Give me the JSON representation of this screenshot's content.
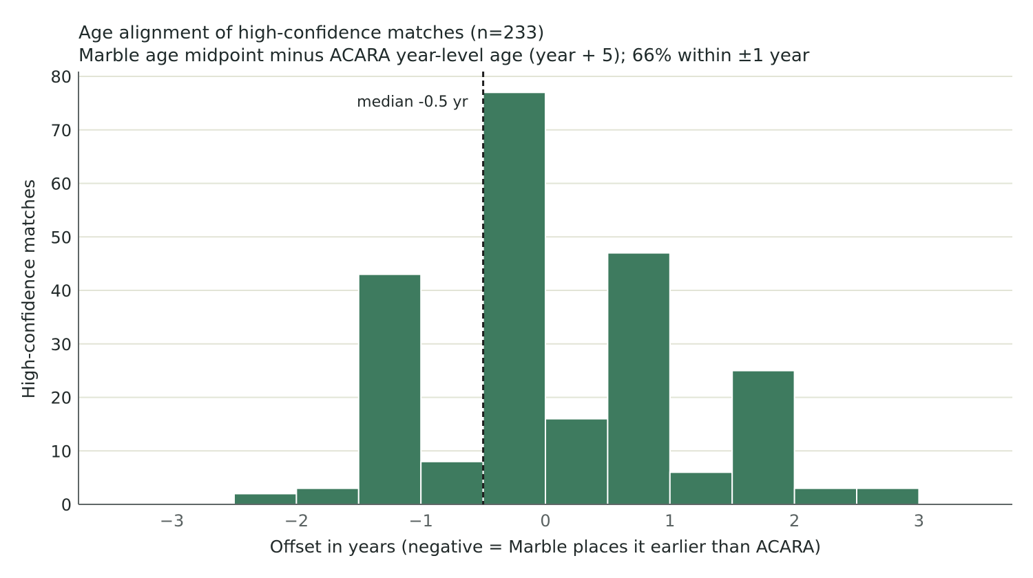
{
  "chart_data": {
    "type": "bar",
    "title": "Age alignment of high-confidence matches (n=233)",
    "subtitle": "Marble age midpoint minus ACARA year-level age (year + 5); 66% within ±1 year",
    "xlabel": "Offset in years  (negative = Marble places it earlier than ACARA)",
    "ylabel": "High-confidence matches",
    "xlim": [
      -3.75,
      3.75
    ],
    "ylim": [
      0,
      80
    ],
    "x_ticks": [
      {
        "value": -3,
        "label": "−3"
      },
      {
        "value": -2,
        "label": "−2"
      },
      {
        "value": -1,
        "label": "−1"
      },
      {
        "value": 0,
        "label": "0"
      },
      {
        "value": 1,
        "label": "1"
      },
      {
        "value": 2,
        "label": "2"
      },
      {
        "value": 3,
        "label": "3"
      }
    ],
    "y_ticks": [
      0,
      10,
      20,
      30,
      40,
      50,
      60,
      70,
      80
    ],
    "bins": [
      {
        "left": -2.5,
        "right": -2.0,
        "count": 2
      },
      {
        "left": -2.0,
        "right": -1.5,
        "count": 3
      },
      {
        "left": -1.5,
        "right": -1.0,
        "count": 43
      },
      {
        "left": -1.0,
        "right": -0.5,
        "count": 8
      },
      {
        "left": -0.5,
        "right": 0.0,
        "count": 77
      },
      {
        "left": 0.0,
        "right": 0.5,
        "count": 16
      },
      {
        "left": 0.5,
        "right": 1.0,
        "count": 47
      },
      {
        "left": 1.0,
        "right": 1.5,
        "count": 6
      },
      {
        "left": 1.5,
        "right": 2.0,
        "count": 25
      },
      {
        "left": 2.0,
        "right": 2.5,
        "count": 3
      },
      {
        "left": 2.5,
        "right": 3.0,
        "count": 3
      }
    ],
    "median": {
      "value": -0.5,
      "label": "median -0.5 yr"
    },
    "grid": "horizontal",
    "colors": {
      "bar": "#3e7b5f",
      "grid": "#e2e4d6",
      "median_line": "#1f1f1f"
    }
  }
}
